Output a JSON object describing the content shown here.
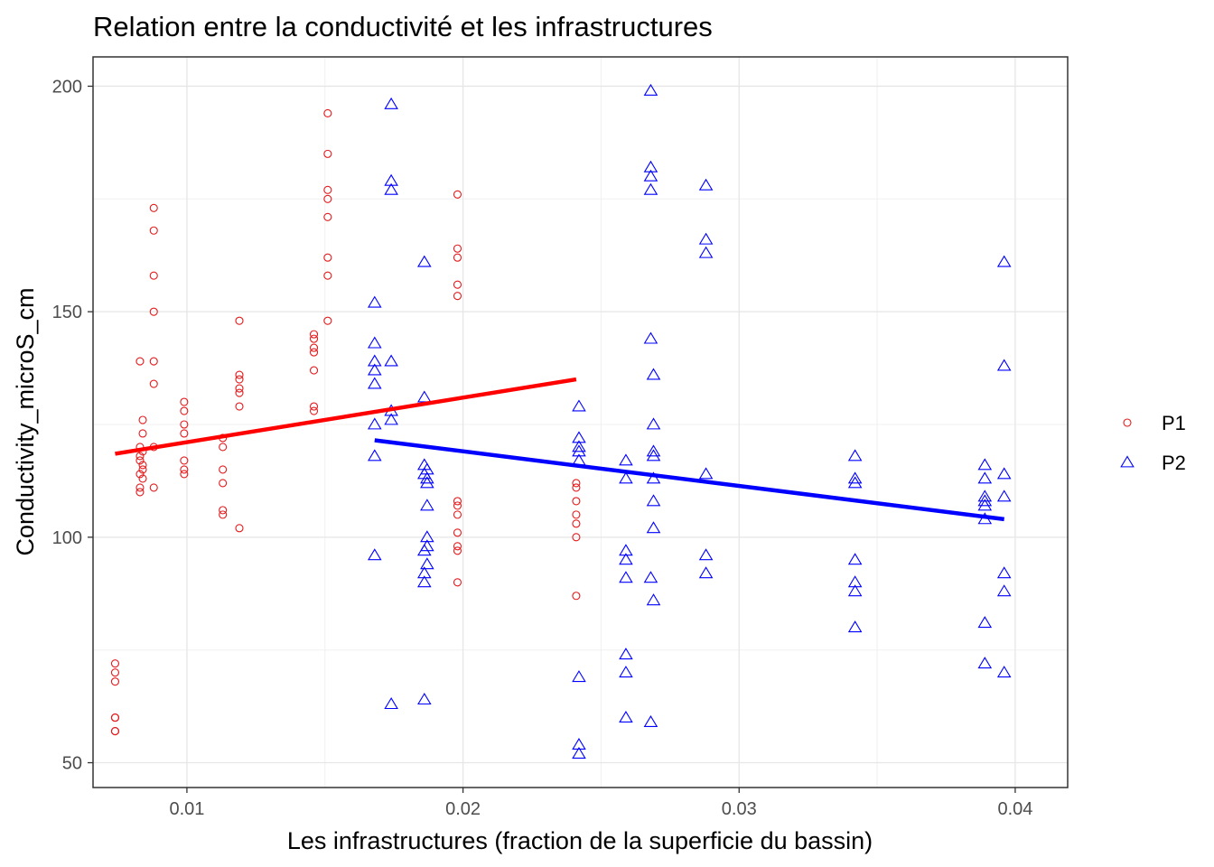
{
  "chart_data": {
    "type": "scatter",
    "title": "Relation entre la conductivité et les infrastructures",
    "xlabel": "Les infrastructures (fraction de la superficie du bassin)",
    "ylabel": "Conductivity_microS_cm",
    "xlim": [
      0.0066,
      0.0419
    ],
    "ylim": [
      44.5,
      206.5
    ],
    "x_ticks": [
      {
        "value": 0.01,
        "label": "0.01"
      },
      {
        "value": 0.02,
        "label": "0.02"
      },
      {
        "value": 0.03,
        "label": "0.03"
      },
      {
        "value": 0.04,
        "label": "0.04"
      }
    ],
    "y_ticks": [
      {
        "value": 50,
        "label": "50"
      },
      {
        "value": 100,
        "label": "100"
      },
      {
        "value": 150,
        "label": "150"
      },
      {
        "value": 200,
        "label": "200"
      }
    ],
    "grid": true,
    "legend_position": "right",
    "series": [
      {
        "name": "P1",
        "shape": "circle",
        "color": "#e41a1c",
        "points": [
          [
            0.0074,
            72
          ],
          [
            0.0074,
            70
          ],
          [
            0.0074,
            68
          ],
          [
            0.0074,
            60
          ],
          [
            0.0074,
            60
          ],
          [
            0.0074,
            57
          ],
          [
            0.0074,
            57
          ],
          [
            0.0083,
            139
          ],
          [
            0.0084,
            126
          ],
          [
            0.0084,
            123
          ],
          [
            0.0083,
            120
          ],
          [
            0.0084,
            119
          ],
          [
            0.0083,
            118
          ],
          [
            0.0083,
            117
          ],
          [
            0.0084,
            116
          ],
          [
            0.0084,
            115
          ],
          [
            0.0083,
            114
          ],
          [
            0.0084,
            113
          ],
          [
            0.0083,
            111
          ],
          [
            0.0083,
            110
          ],
          [
            0.0088,
            173
          ],
          [
            0.0088,
            168
          ],
          [
            0.0088,
            158
          ],
          [
            0.0088,
            150
          ],
          [
            0.0088,
            139
          ],
          [
            0.0088,
            134
          ],
          [
            0.0088,
            120
          ],
          [
            0.0088,
            111
          ],
          [
            0.0099,
            130
          ],
          [
            0.0099,
            128
          ],
          [
            0.0099,
            125
          ],
          [
            0.0099,
            123
          ],
          [
            0.0099,
            117
          ],
          [
            0.0099,
            115
          ],
          [
            0.0099,
            114
          ],
          [
            0.0113,
            122
          ],
          [
            0.0113,
            120
          ],
          [
            0.0113,
            115
          ],
          [
            0.0113,
            112
          ],
          [
            0.0113,
            106
          ],
          [
            0.0113,
            105
          ],
          [
            0.0119,
            148
          ],
          [
            0.0119,
            136
          ],
          [
            0.0119,
            135
          ],
          [
            0.0119,
            133
          ],
          [
            0.0119,
            132
          ],
          [
            0.0119,
            129
          ],
          [
            0.0119,
            102
          ],
          [
            0.0146,
            145
          ],
          [
            0.0146,
            144
          ],
          [
            0.0146,
            142
          ],
          [
            0.0146,
            141
          ],
          [
            0.0146,
            137
          ],
          [
            0.0146,
            129
          ],
          [
            0.0146,
            128
          ],
          [
            0.0151,
            194
          ],
          [
            0.0151,
            185
          ],
          [
            0.0151,
            177
          ],
          [
            0.0151,
            175
          ],
          [
            0.0151,
            171
          ],
          [
            0.0151,
            162
          ],
          [
            0.0151,
            158
          ],
          [
            0.0151,
            148
          ],
          [
            0.0198,
            176
          ],
          [
            0.0198,
            164
          ],
          [
            0.0198,
            162
          ],
          [
            0.0198,
            156
          ],
          [
            0.0198,
            153.5
          ],
          [
            0.0198,
            108
          ],
          [
            0.0198,
            107
          ],
          [
            0.0198,
            105
          ],
          [
            0.0198,
            101
          ],
          [
            0.0198,
            98
          ],
          [
            0.0198,
            97
          ],
          [
            0.0198,
            90
          ],
          [
            0.0241,
            112
          ],
          [
            0.0241,
            111
          ],
          [
            0.0241,
            108
          ],
          [
            0.0241,
            105
          ],
          [
            0.0241,
            103
          ],
          [
            0.0241,
            100
          ],
          [
            0.0241,
            87
          ]
        ],
        "trend": [
          [
            0.0074,
            118.5
          ],
          [
            0.0241,
            135
          ]
        ]
      },
      {
        "name": "P2",
        "shape": "triangle",
        "color": "#0000ff",
        "points": [
          [
            0.0168,
            152
          ],
          [
            0.0168,
            143
          ],
          [
            0.0168,
            139
          ],
          [
            0.0168,
            137
          ],
          [
            0.0168,
            134
          ],
          [
            0.0168,
            125
          ],
          [
            0.0168,
            118
          ],
          [
            0.0168,
            96
          ],
          [
            0.0174,
            196
          ],
          [
            0.0174,
            179
          ],
          [
            0.0174,
            177
          ],
          [
            0.0174,
            139
          ],
          [
            0.0174,
            128
          ],
          [
            0.0174,
            126
          ],
          [
            0.0174,
            63
          ],
          [
            0.0186,
            161
          ],
          [
            0.0186,
            131
          ],
          [
            0.0186,
            116
          ],
          [
            0.0187,
            115
          ],
          [
            0.0186,
            114
          ],
          [
            0.0187,
            113
          ],
          [
            0.0187,
            112
          ],
          [
            0.0187,
            107
          ],
          [
            0.0187,
            100
          ],
          [
            0.0187,
            98
          ],
          [
            0.0186,
            97
          ],
          [
            0.0187,
            94
          ],
          [
            0.0186,
            92
          ],
          [
            0.0186,
            90
          ],
          [
            0.0186,
            64
          ],
          [
            0.0242,
            129
          ],
          [
            0.0242,
            122
          ],
          [
            0.0242,
            120
          ],
          [
            0.0242,
            119
          ],
          [
            0.0242,
            117
          ],
          [
            0.0242,
            69
          ],
          [
            0.0242,
            54
          ],
          [
            0.0242,
            52
          ],
          [
            0.0259,
            117
          ],
          [
            0.0259,
            113
          ],
          [
            0.0259,
            97
          ],
          [
            0.0259,
            95
          ],
          [
            0.0259,
            91
          ],
          [
            0.0259,
            74
          ],
          [
            0.0259,
            70
          ],
          [
            0.0259,
            60
          ],
          [
            0.0268,
            199
          ],
          [
            0.0268,
            182
          ],
          [
            0.0268,
            180
          ],
          [
            0.0268,
            177
          ],
          [
            0.0268,
            144
          ],
          [
            0.0269,
            136
          ],
          [
            0.0269,
            125
          ],
          [
            0.0269,
            119
          ],
          [
            0.0269,
            118
          ],
          [
            0.0269,
            113
          ],
          [
            0.0269,
            108
          ],
          [
            0.0269,
            102
          ],
          [
            0.0268,
            91
          ],
          [
            0.0269,
            86
          ],
          [
            0.0268,
            59
          ],
          [
            0.0288,
            178
          ],
          [
            0.0288,
            166
          ],
          [
            0.0288,
            163
          ],
          [
            0.0288,
            114
          ],
          [
            0.0288,
            96
          ],
          [
            0.0288,
            92
          ],
          [
            0.0342,
            118
          ],
          [
            0.0342,
            113
          ],
          [
            0.0342,
            112
          ],
          [
            0.0342,
            95
          ],
          [
            0.0342,
            90
          ],
          [
            0.0342,
            88
          ],
          [
            0.0342,
            80
          ],
          [
            0.0389,
            116
          ],
          [
            0.0389,
            113
          ],
          [
            0.0389,
            109
          ],
          [
            0.0389,
            108
          ],
          [
            0.0389,
            107
          ],
          [
            0.0389,
            104
          ],
          [
            0.0389,
            81
          ],
          [
            0.0389,
            72
          ],
          [
            0.0396,
            161
          ],
          [
            0.0396,
            138
          ],
          [
            0.0396,
            114
          ],
          [
            0.0396,
            109
          ],
          [
            0.0396,
            92
          ],
          [
            0.0396,
            88
          ],
          [
            0.0396,
            70
          ]
        ],
        "trend": [
          [
            0.0168,
            121.5
          ],
          [
            0.0396,
            104
          ]
        ]
      }
    ]
  }
}
